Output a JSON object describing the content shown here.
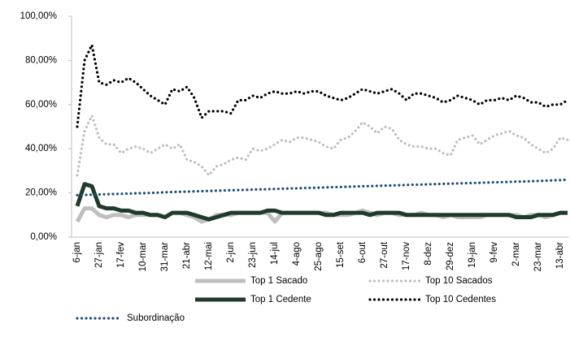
{
  "chart_data": {
    "type": "line",
    "categories": [
      "6-jan",
      null,
      null,
      "27-jan",
      null,
      null,
      "17-fev",
      null,
      null,
      "10-mar",
      null,
      null,
      "31-mar",
      null,
      null,
      "21-abr",
      null,
      null,
      "12-mai",
      null,
      null,
      "2-jun",
      null,
      null,
      "23-jun",
      null,
      null,
      "14-jul",
      null,
      null,
      "4-ago",
      null,
      null,
      "25-ago",
      null,
      null,
      "15-set",
      null,
      null,
      "6-out",
      null,
      null,
      "27-out",
      null,
      null,
      "17-nov",
      null,
      null,
      "8-dez",
      null,
      null,
      "29-dez",
      null,
      null,
      "19-jan",
      null,
      null,
      "9-fev",
      null,
      null,
      "2-mar",
      null,
      null,
      "23-mar",
      null,
      null,
      "13-abr",
      null
    ],
    "series": [
      {
        "name": "Top 1 Sacado",
        "color": "#bfbfbf",
        "style": "solid",
        "values": [
          7,
          13,
          13,
          10,
          9,
          10,
          10,
          9,
          10,
          10,
          10,
          10,
          9,
          11,
          11,
          10,
          9,
          7,
          8,
          10,
          10,
          10,
          11,
          11,
          11,
          11,
          11,
          7,
          11,
          11,
          11,
          11,
          11,
          11,
          11,
          10,
          10,
          10,
          11,
          12,
          11,
          10,
          11,
          11,
          10,
          10,
          10,
          11,
          10,
          10,
          9,
          10,
          9,
          9,
          9,
          9,
          10,
          10,
          10,
          10,
          10,
          9,
          10,
          10,
          9,
          10,
          11,
          11
        ]
      },
      {
        "name": "Top 10 Sacados",
        "color": "#bfbfbf",
        "style": "dotted",
        "values": [
          28,
          48,
          55,
          45,
          42,
          42,
          38,
          40,
          41,
          40,
          38,
          40,
          42,
          40,
          42,
          35,
          34,
          32,
          28,
          32,
          33,
          35,
          36,
          35,
          40,
          39,
          40,
          42,
          44,
          43,
          45,
          45,
          44,
          43,
          41,
          40,
          44,
          45,
          48,
          52,
          50,
          47,
          50,
          49,
          44,
          42,
          41,
          41,
          40,
          40,
          38,
          37,
          44,
          45,
          46,
          42,
          44,
          46,
          47,
          48,
          46,
          45,
          42,
          40,
          38,
          40,
          45,
          44
        ]
      },
      {
        "name": "Top 1 Cedente",
        "color": "#1e3b2c",
        "style": "solid",
        "values": [
          14,
          24,
          23,
          14,
          13,
          13,
          12,
          12,
          11,
          11,
          10,
          10,
          9,
          11,
          11,
          11,
          10,
          9,
          8,
          9,
          10,
          11,
          11,
          11,
          11,
          11,
          12,
          12,
          11,
          11,
          11,
          11,
          11,
          11,
          10,
          10,
          11,
          11,
          11,
          11,
          10,
          11,
          11,
          11,
          11,
          10,
          10,
          10,
          10,
          10,
          10,
          10,
          10,
          10,
          10,
          10,
          10,
          10,
          10,
          10,
          9,
          9,
          9,
          10,
          10,
          10,
          11,
          11
        ]
      },
      {
        "name": "Top 10 Cedentes",
        "color": "#000000",
        "style": "dotted",
        "values": [
          50,
          80,
          87,
          70,
          69,
          71,
          70,
          72,
          70,
          67,
          64,
          62,
          60,
          67,
          66,
          68,
          63,
          54,
          57,
          57,
          57,
          56,
          62,
          62,
          64,
          63,
          65,
          66,
          65,
          65,
          66,
          65,
          66,
          66,
          64,
          63,
          62,
          63,
          65,
          67,
          66,
          65,
          66,
          67,
          65,
          62,
          65,
          65,
          64,
          63,
          61,
          62,
          64,
          63,
          62,
          60,
          62,
          62,
          63,
          62,
          64,
          63,
          61,
          61,
          59,
          60,
          60,
          62
        ]
      },
      {
        "name": "Subordinação",
        "color": "#1f4e79",
        "style": "dotted",
        "values": [
          19,
          19.1,
          19.2,
          19.3,
          19.4,
          19.5,
          19.6,
          19.7,
          19.8,
          19.9,
          20,
          20.1,
          20.3,
          20.4,
          20.5,
          20.6,
          20.7,
          20.8,
          20.9,
          21,
          21.1,
          21.2,
          21.3,
          21.4,
          21.5,
          21.6,
          21.7,
          21.8,
          21.9,
          22,
          22.1,
          22.2,
          22.3,
          22.4,
          22.5,
          22.6,
          22.7,
          22.8,
          22.9,
          23,
          23.1,
          23.2,
          23.3,
          23.4,
          23.5,
          23.6,
          23.7,
          23.8,
          23.9,
          24,
          24.1,
          24.2,
          24.3,
          24.4,
          24.5,
          24.6,
          24.7,
          24.8,
          24.9,
          25,
          25.1,
          25.2,
          25.3,
          25.4,
          25.5,
          25.7,
          25.8,
          26
        ]
      }
    ],
    "ylim": [
      0,
      100
    ],
    "yticks": [
      {
        "value": 0,
        "label": "0,00%"
      },
      {
        "value": 20,
        "label": "20,00%"
      },
      {
        "value": 40,
        "label": "40,00%"
      },
      {
        "value": 60,
        "label": "60,00%"
      },
      {
        "value": 80,
        "label": "80,00%"
      },
      {
        "value": 100,
        "label": "100,00%"
      }
    ],
    "grid": false,
    "legend": "bottom"
  }
}
